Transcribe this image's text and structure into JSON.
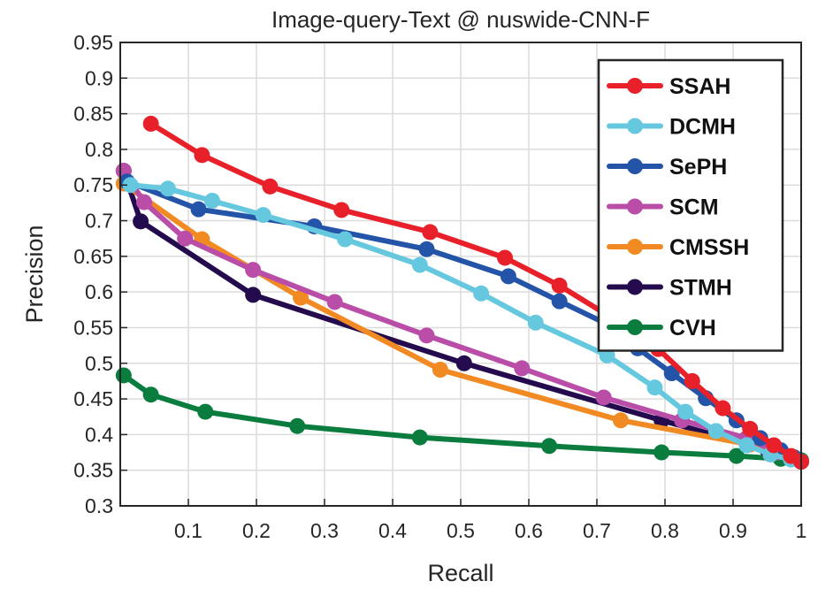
{
  "chart_data": {
    "type": "line",
    "title": "Image-query-Text @ nuswide-CNN-F",
    "xlabel": "Recall",
    "ylabel": "Precision",
    "xlim": [
      0,
      1
    ],
    "ylim": [
      0.3,
      0.95
    ],
    "xticks": [
      "0.1",
      "0.2",
      "0.3",
      "0.4",
      "0.5",
      "0.6",
      "0.7",
      "0.8",
      "0.9",
      "1"
    ],
    "yticks": [
      "0.3",
      "0.35",
      "0.4",
      "0.45",
      "0.5",
      "0.55",
      "0.6",
      "0.65",
      "0.7",
      "0.75",
      "0.8",
      "0.85",
      "0.9",
      "0.95"
    ],
    "grid": true,
    "legend_position": "top-right",
    "series": [
      {
        "name": "SSAH",
        "color": "#e8202a",
        "points": [
          [
            0.045,
            0.836
          ],
          [
            0.12,
            0.792
          ],
          [
            0.22,
            0.748
          ],
          [
            0.325,
            0.715
          ],
          [
            0.455,
            0.684
          ],
          [
            0.565,
            0.648
          ],
          [
            0.645,
            0.609
          ],
          [
            0.72,
            0.565
          ],
          [
            0.79,
            0.52
          ],
          [
            0.84,
            0.475
          ],
          [
            0.885,
            0.437
          ],
          [
            0.925,
            0.408
          ],
          [
            0.96,
            0.385
          ],
          [
            0.985,
            0.37
          ],
          [
            1.0,
            0.362
          ]
        ]
      },
      {
        "name": "DCMH",
        "color": "#66c8de",
        "points": [
          [
            0.015,
            0.75
          ],
          [
            0.07,
            0.745
          ],
          [
            0.135,
            0.728
          ],
          [
            0.21,
            0.708
          ],
          [
            0.33,
            0.674
          ],
          [
            0.44,
            0.638
          ],
          [
            0.53,
            0.598
          ],
          [
            0.61,
            0.557
          ],
          [
            0.715,
            0.511
          ],
          [
            0.785,
            0.466
          ],
          [
            0.83,
            0.432
          ],
          [
            0.875,
            0.405
          ],
          [
            0.92,
            0.385
          ],
          [
            0.955,
            0.372
          ],
          [
            0.985,
            0.365
          ],
          [
            1.0,
            0.362
          ]
        ]
      },
      {
        "name": "SePH",
        "color": "#2454a8",
        "points": [
          [
            0.01,
            0.755
          ],
          [
            0.115,
            0.716
          ],
          [
            0.285,
            0.692
          ],
          [
            0.45,
            0.66
          ],
          [
            0.57,
            0.622
          ],
          [
            0.645,
            0.587
          ],
          [
            0.715,
            0.555
          ],
          [
            0.76,
            0.521
          ],
          [
            0.81,
            0.486
          ],
          [
            0.86,
            0.451
          ],
          [
            0.905,
            0.42
          ],
          [
            0.94,
            0.395
          ],
          [
            0.97,
            0.378
          ],
          [
            0.99,
            0.368
          ],
          [
            1.0,
            0.362
          ]
        ]
      },
      {
        "name": "SCM",
        "color": "#b94da8",
        "points": [
          [
            0.005,
            0.77
          ],
          [
            0.035,
            0.726
          ],
          [
            0.095,
            0.675
          ],
          [
            0.195,
            0.631
          ],
          [
            0.315,
            0.586
          ],
          [
            0.45,
            0.539
          ],
          [
            0.59,
            0.493
          ],
          [
            0.71,
            0.452
          ],
          [
            0.825,
            0.42
          ],
          [
            0.92,
            0.395
          ],
          [
            0.965,
            0.375
          ],
          [
            1.0,
            0.362
          ]
        ]
      },
      {
        "name": "CMSSH",
        "color": "#f28a24",
        "points": [
          [
            0.005,
            0.752
          ],
          [
            0.12,
            0.674
          ],
          [
            0.265,
            0.592
          ],
          [
            0.47,
            0.491
          ],
          [
            0.735,
            0.42
          ],
          [
            0.925,
            0.386
          ],
          [
            1.0,
            0.362
          ]
        ]
      },
      {
        "name": "STMH",
        "color": "#240b4d",
        "points": [
          [
            0.005,
            0.77
          ],
          [
            0.03,
            0.699
          ],
          [
            0.195,
            0.596
          ],
          [
            0.505,
            0.5
          ],
          [
            0.795,
            0.42
          ],
          [
            0.95,
            0.379
          ],
          [
            1.0,
            0.362
          ]
        ]
      },
      {
        "name": "CVH",
        "color": "#0a7d3e",
        "points": [
          [
            0.005,
            0.483
          ],
          [
            0.045,
            0.456
          ],
          [
            0.125,
            0.432
          ],
          [
            0.26,
            0.412
          ],
          [
            0.44,
            0.396
          ],
          [
            0.63,
            0.384
          ],
          [
            0.795,
            0.375
          ],
          [
            0.905,
            0.37
          ],
          [
            0.97,
            0.366
          ],
          [
            1.0,
            0.364
          ]
        ]
      }
    ]
  }
}
